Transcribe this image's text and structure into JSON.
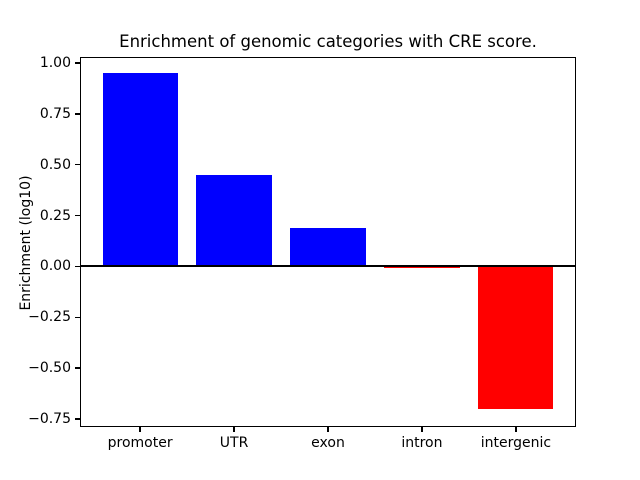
{
  "chart_data": {
    "type": "bar",
    "title": "Enrichment of genomic categories with CRE score.",
    "xlabel": "",
    "ylabel": "Enrichment (log10)",
    "categories": [
      "promoter",
      "UTR",
      "exon",
      "intron",
      "intergenic"
    ],
    "values": [
      0.95,
      0.45,
      0.19,
      -0.01,
      -0.7
    ],
    "bar_colors": [
      "#0000ff",
      "#0000ff",
      "#0000ff",
      "#ff0000",
      "#ff0000"
    ],
    "positive_color": "#0000ff",
    "negative_color": "#ff0000",
    "zero_line_color": "#000000",
    "background_color": "#ffffff",
    "ylim": [
      -0.79,
      1.03
    ],
    "xlim": [
      -0.64,
      4.64
    ],
    "bar_width_fraction": 0.8,
    "yticks": [
      1.0,
      0.75,
      0.5,
      0.25,
      0.0,
      -0.25,
      -0.5,
      -0.75
    ],
    "ytick_labels": [
      "1.00",
      "0.75",
      "0.50",
      "0.25",
      "0.00",
      "−0.25",
      "−0.50",
      "−0.75"
    ],
    "grid": false,
    "legend": null
  }
}
